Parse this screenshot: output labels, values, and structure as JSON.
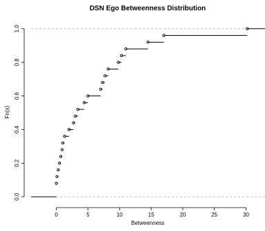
{
  "chart_data": {
    "type": "ecdf",
    "title": "DSN Ego Betweenness Distribution",
    "xlabel": "Betweenness",
    "ylabel": "Fn(x)",
    "xlim": [
      -4,
      33
    ],
    "ylim": [
      -0.04,
      1.04
    ],
    "x_ticks": [
      "0",
      "5",
      "10",
      "15",
      "20",
      "25",
      "30"
    ],
    "y_ticks": [
      "0.0",
      "0.2",
      "0.4",
      "0.6",
      "0.8",
      "1.0"
    ],
    "reference_lines": [
      0,
      1
    ],
    "steps": [
      {
        "x": 0.0,
        "y": 0.08
      },
      {
        "x": 0.1,
        "y": 0.12
      },
      {
        "x": 0.3,
        "y": 0.16
      },
      {
        "x": 0.5,
        "y": 0.2
      },
      {
        "x": 0.7,
        "y": 0.24
      },
      {
        "x": 0.9,
        "y": 0.28
      },
      {
        "x": 1.0,
        "y": 0.32
      },
      {
        "x": 1.3,
        "y": 0.36
      },
      {
        "x": 2.0,
        "y": 0.4
      },
      {
        "x": 2.7,
        "y": 0.44
      },
      {
        "x": 3.0,
        "y": 0.48
      },
      {
        "x": 3.4,
        "y": 0.52
      },
      {
        "x": 4.4,
        "y": 0.56
      },
      {
        "x": 5.0,
        "y": 0.6
      },
      {
        "x": 7.0,
        "y": 0.64
      },
      {
        "x": 7.3,
        "y": 0.68
      },
      {
        "x": 7.7,
        "y": 0.72
      },
      {
        "x": 8.2,
        "y": 0.76
      },
      {
        "x": 9.8,
        "y": 0.8
      },
      {
        "x": 10.3,
        "y": 0.84
      },
      {
        "x": 11.0,
        "y": 0.88
      },
      {
        "x": 14.5,
        "y": 0.92
      },
      {
        "x": 17.0,
        "y": 0.96
      },
      {
        "x": 30.2,
        "y": 1.0
      }
    ]
  }
}
